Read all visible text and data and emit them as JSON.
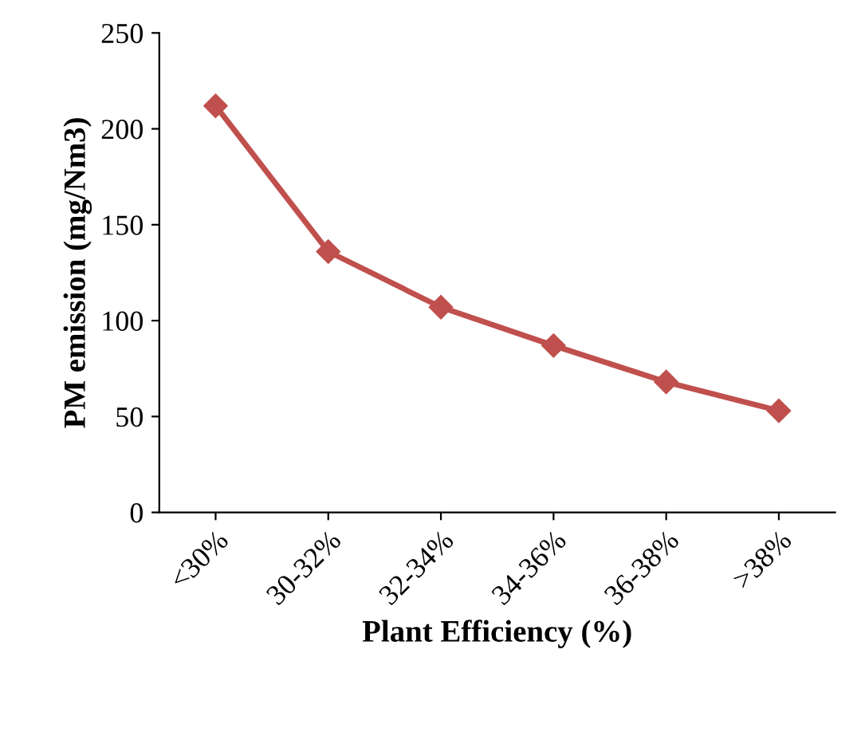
{
  "chart_data": {
    "type": "line",
    "xlabel": "Plant Efficiency (%)",
    "ylabel": "PM emission (mg/Nm3)",
    "categories": [
      "<30%",
      "30-32%",
      "32-34%",
      "34-36%",
      "36-38%",
      ">38%"
    ],
    "series": [
      {
        "color": "#c0504d",
        "values": [
          212,
          136,
          107,
          87,
          68,
          53
        ]
      }
    ],
    "ylim": [
      0,
      250
    ],
    "yticks": [
      0,
      50,
      100,
      150,
      200,
      250
    ],
    "grid": false,
    "legend": false,
    "marker": "diamond",
    "line_style": "solid"
  }
}
